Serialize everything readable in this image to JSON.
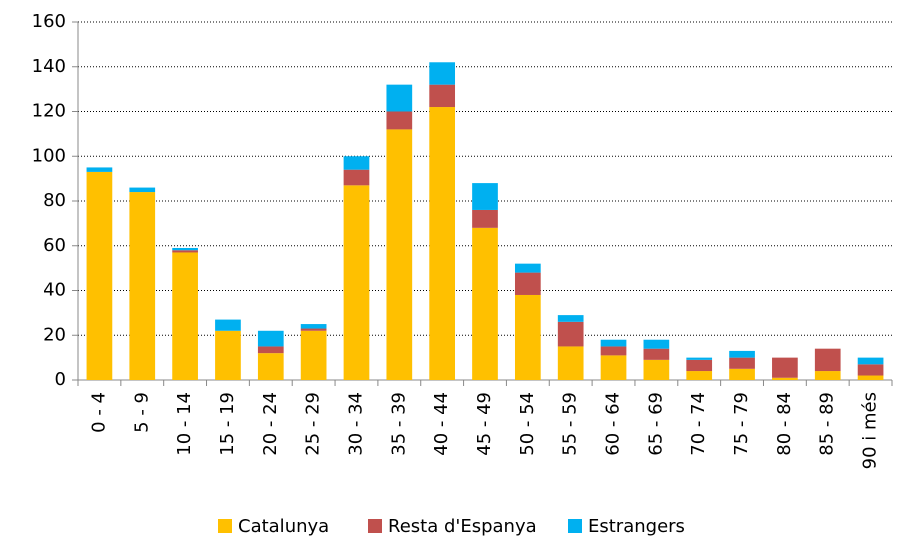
{
  "chart_data": {
    "type": "stacked_bar",
    "categories": [
      "0 - 4",
      "5 - 9",
      "10 - 14",
      "15 - 19",
      "20 - 24",
      "25 - 29",
      "30 - 34",
      "35 - 39",
      "40 - 44",
      "45 - 49",
      "50 - 54",
      "55 - 59",
      "60 - 64",
      "65 - 69",
      "70 - 74",
      "75 - 79",
      "80 - 84",
      "85 - 89",
      "90 i més"
    ],
    "series": [
      {
        "name": "Catalunya",
        "color": "#ffc000",
        "values": [
          93,
          84,
          57,
          22,
          12,
          22,
          87,
          112,
          122,
          68,
          38,
          15,
          11,
          9,
          4,
          5,
          1,
          4,
          2
        ]
      },
      {
        "name": "Resta d'Espanya",
        "color": "#c0504d",
        "values": [
          0,
          0,
          1,
          0,
          3,
          1,
          7,
          8,
          10,
          8,
          10,
          11,
          4,
          5,
          5,
          5,
          9,
          10,
          5
        ]
      },
      {
        "name": "Estrangers",
        "color": "#00b0f0",
        "values": [
          2,
          2,
          1,
          5,
          7,
          2,
          6,
          12,
          10,
          12,
          4,
          3,
          3,
          4,
          1,
          3,
          0,
          0,
          3
        ]
      }
    ],
    "ylim": [
      0,
      160
    ],
    "yticks": [
      0,
      20,
      40,
      60,
      80,
      100,
      120,
      140,
      160
    ],
    "grid": true,
    "legend": "bottom"
  }
}
